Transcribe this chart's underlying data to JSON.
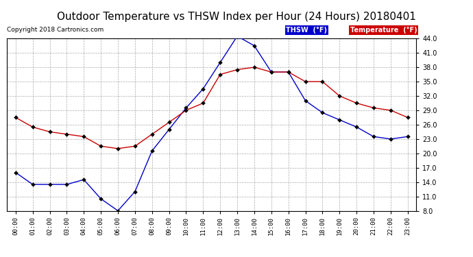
{
  "title": "Outdoor Temperature vs THSW Index per Hour (24 Hours) 20180401",
  "copyright": "Copyright 2018 Cartronics.com",
  "hours": [
    "00:00",
    "01:00",
    "02:00",
    "03:00",
    "04:00",
    "05:00",
    "06:00",
    "07:00",
    "08:00",
    "09:00",
    "10:00",
    "11:00",
    "12:00",
    "13:00",
    "14:00",
    "15:00",
    "16:00",
    "17:00",
    "18:00",
    "19:00",
    "20:00",
    "21:00",
    "22:00",
    "23:00"
  ],
  "thsw": [
    16.0,
    13.5,
    13.5,
    13.5,
    14.5,
    10.5,
    8.0,
    12.0,
    20.5,
    25.0,
    29.5,
    33.5,
    39.0,
    44.5,
    42.5,
    37.0,
    37.0,
    31.0,
    28.5,
    27.0,
    25.5,
    23.5,
    23.0,
    23.5
  ],
  "temperature": [
    27.5,
    25.5,
    24.5,
    24.0,
    23.5,
    21.5,
    21.0,
    21.5,
    24.0,
    26.5,
    29.0,
    30.5,
    36.5,
    37.5,
    38.0,
    37.0,
    37.0,
    35.0,
    35.0,
    32.0,
    30.5,
    29.5,
    29.0,
    27.5
  ],
  "ylim": [
    8.0,
    44.0
  ],
  "yticks": [
    8.0,
    11.0,
    14.0,
    17.0,
    20.0,
    23.0,
    26.0,
    29.0,
    32.0,
    35.0,
    38.0,
    41.0,
    44.0
  ],
  "thsw_color": "#0000cc",
  "temp_color": "#cc0000",
  "bg_color": "#ffffff",
  "grid_color": "#aaaaaa",
  "title_fontsize": 11,
  "legend_thsw_bg": "#0000cc",
  "legend_temp_bg": "#cc0000",
  "legend_label_thsw": "THSW  (°F)",
  "legend_label_temp": "Temperature  (°F)"
}
